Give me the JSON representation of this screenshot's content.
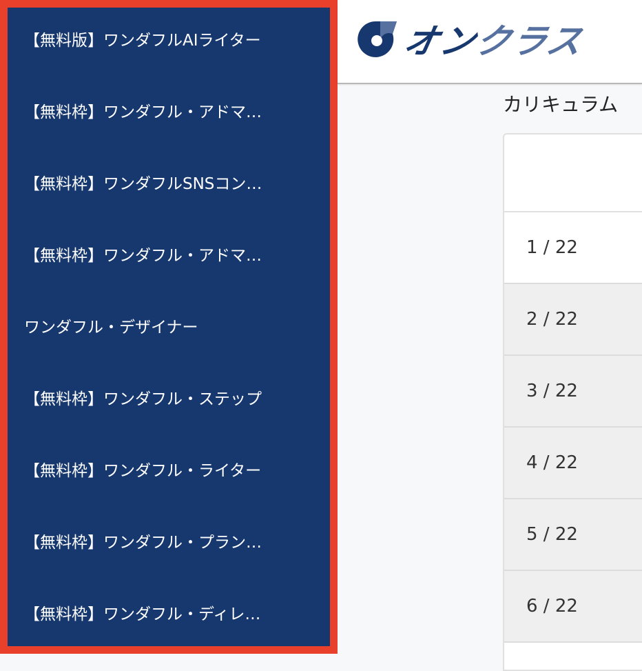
{
  "sidebar": {
    "items": [
      {
        "label": "【無料版】ワンダフルAIライター"
      },
      {
        "label": "【無料枠】ワンダフル・アドマ…"
      },
      {
        "label": "【無料枠】ワンダフルSNSコン…"
      },
      {
        "label": "【無料枠】ワンダフル・アドマ…"
      },
      {
        "label": "ワンダフル・デザイナー"
      },
      {
        "label": "【無料枠】ワンダフル・ステップ"
      },
      {
        "label": "【無料枠】ワンダフル・ライター"
      },
      {
        "label": "【無料枠】ワンダフル・プラン…"
      },
      {
        "label": "【無料枠】ワンダフル・ディレ…"
      }
    ],
    "highlight_color": "#e8402a",
    "background_color": "#17386e"
  },
  "header": {
    "logo": {
      "text_dark": "オン",
      "text_light": "クラス"
    }
  },
  "main": {
    "section_title": "カリキュラム",
    "rows": [
      {
        "progress": "1 / 22"
      },
      {
        "progress": "2 / 22"
      },
      {
        "progress": "3 / 22"
      },
      {
        "progress": "4 / 22"
      },
      {
        "progress": "5 / 22"
      },
      {
        "progress": "6 / 22"
      }
    ]
  }
}
